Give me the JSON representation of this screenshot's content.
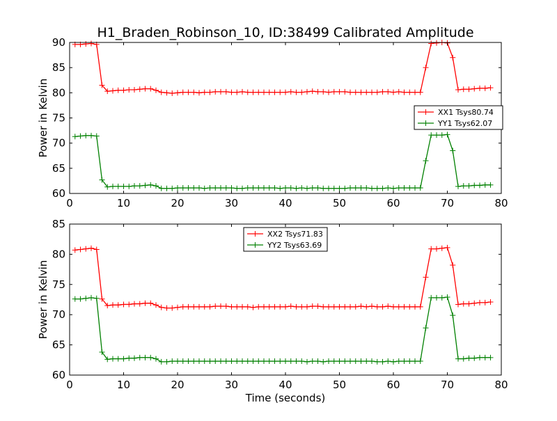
{
  "title": "H1_Braden_Robinson_10, ID:38499 Calibrated Amplitude",
  "xlabel": "Time (seconds)",
  "colors": {
    "XX": "#ff0000",
    "YY": "#008000"
  },
  "chart_data": [
    {
      "type": "line",
      "ylabel": "Power in Kelvin",
      "xlim": [
        0,
        80
      ],
      "ylim": [
        60,
        90
      ],
      "xticks": [
        0,
        10,
        20,
        30,
        40,
        50,
        60,
        70,
        80
      ],
      "yticks": [
        60,
        65,
        70,
        75,
        80,
        85,
        90
      ],
      "legend_position": "center-right",
      "series": [
        {
          "name": "XX1 Tsys80.74",
          "color": "#ff0000",
          "x": [
            1,
            2,
            3,
            4,
            5,
            6,
            7,
            8,
            9,
            10,
            11,
            12,
            13,
            14,
            15,
            16,
            17,
            18,
            19,
            20,
            21,
            22,
            23,
            24,
            25,
            26,
            27,
            28,
            29,
            30,
            31,
            32,
            33,
            34,
            35,
            36,
            37,
            38,
            39,
            40,
            41,
            42,
            43,
            44,
            45,
            46,
            47,
            48,
            49,
            50,
            51,
            52,
            53,
            54,
            55,
            56,
            57,
            58,
            59,
            60,
            61,
            62,
            63,
            64,
            65,
            66,
            67,
            68,
            69,
            70,
            71,
            72,
            73,
            74,
            75,
            76,
            77,
            78
          ],
          "y": [
            89.6,
            89.6,
            89.7,
            89.8,
            89.6,
            81.5,
            80.3,
            80.4,
            80.5,
            80.5,
            80.6,
            80.6,
            80.7,
            80.8,
            80.8,
            80.5,
            80.1,
            80.0,
            79.9,
            80.0,
            80.1,
            80.1,
            80.1,
            80.0,
            80.1,
            80.1,
            80.2,
            80.2,
            80.2,
            80.1,
            80.1,
            80.2,
            80.1,
            80.1,
            80.1,
            80.1,
            80.1,
            80.1,
            80.1,
            80.1,
            80.2,
            80.1,
            80.1,
            80.2,
            80.3,
            80.2,
            80.2,
            80.1,
            80.2,
            80.2,
            80.2,
            80.1,
            80.1,
            80.1,
            80.1,
            80.1,
            80.1,
            80.2,
            80.2,
            80.1,
            80.2,
            80.1,
            80.1,
            80.1,
            80.1,
            85.0,
            89.8,
            89.9,
            90.0,
            89.9,
            87.0,
            80.6,
            80.7,
            80.7,
            80.8,
            80.9,
            80.9,
            81.0
          ]
        },
        {
          "name": "YY1 Tsys62.07",
          "color": "#008000",
          "x": [
            1,
            2,
            3,
            4,
            5,
            6,
            7,
            8,
            9,
            10,
            11,
            12,
            13,
            14,
            15,
            16,
            17,
            18,
            19,
            20,
            21,
            22,
            23,
            24,
            25,
            26,
            27,
            28,
            29,
            30,
            31,
            32,
            33,
            34,
            35,
            36,
            37,
            38,
            39,
            40,
            41,
            42,
            43,
            44,
            45,
            46,
            47,
            48,
            49,
            50,
            51,
            52,
            53,
            54,
            55,
            56,
            57,
            58,
            59,
            60,
            61,
            62,
            63,
            64,
            65,
            66,
            67,
            68,
            69,
            70,
            71,
            72,
            73,
            74,
            75,
            76,
            77,
            78
          ],
          "y": [
            71.3,
            71.4,
            71.5,
            71.5,
            71.4,
            62.7,
            61.3,
            61.4,
            61.4,
            61.4,
            61.4,
            61.5,
            61.5,
            61.6,
            61.7,
            61.5,
            61.0,
            61.0,
            61.0,
            61.1,
            61.1,
            61.1,
            61.1,
            61.1,
            61.0,
            61.1,
            61.1,
            61.1,
            61.1,
            61.1,
            61.0,
            61.0,
            61.1,
            61.1,
            61.1,
            61.1,
            61.1,
            61.1,
            61.0,
            61.1,
            61.1,
            61.0,
            61.1,
            61.0,
            61.1,
            61.1,
            61.0,
            61.0,
            61.0,
            61.0,
            61.0,
            61.1,
            61.1,
            61.1,
            61.1,
            61.0,
            61.0,
            61.0,
            61.1,
            61.0,
            61.1,
            61.1,
            61.1,
            61.1,
            61.1,
            66.5,
            71.6,
            71.6,
            71.6,
            71.7,
            68.5,
            61.4,
            61.5,
            61.5,
            61.6,
            61.6,
            61.7,
            61.7
          ]
        }
      ]
    },
    {
      "type": "line",
      "ylabel": "Power in Kelvin",
      "xlim": [
        0,
        80
      ],
      "ylim": [
        60,
        85
      ],
      "xticks": [
        0,
        10,
        20,
        30,
        40,
        50,
        60,
        70,
        80
      ],
      "yticks": [
        60,
        65,
        70,
        75,
        80,
        85
      ],
      "legend_position": "upper-center",
      "series": [
        {
          "name": "XX2 Tsys71.83",
          "color": "#ff0000",
          "x": [
            1,
            2,
            3,
            4,
            5,
            6,
            7,
            8,
            9,
            10,
            11,
            12,
            13,
            14,
            15,
            16,
            17,
            18,
            19,
            20,
            21,
            22,
            23,
            24,
            25,
            26,
            27,
            28,
            29,
            30,
            31,
            32,
            33,
            34,
            35,
            36,
            37,
            38,
            39,
            40,
            41,
            42,
            43,
            44,
            45,
            46,
            47,
            48,
            49,
            50,
            51,
            52,
            53,
            54,
            55,
            56,
            57,
            58,
            59,
            60,
            61,
            62,
            63,
            64,
            65,
            66,
            67,
            68,
            69,
            70,
            71,
            72,
            73,
            74,
            75,
            76,
            77,
            78
          ],
          "y": [
            80.7,
            80.8,
            80.9,
            81.0,
            80.8,
            72.6,
            71.5,
            71.6,
            71.6,
            71.7,
            71.7,
            71.8,
            71.8,
            71.9,
            71.9,
            71.6,
            71.2,
            71.1,
            71.1,
            71.2,
            71.3,
            71.3,
            71.3,
            71.3,
            71.3,
            71.3,
            71.4,
            71.4,
            71.4,
            71.3,
            71.3,
            71.3,
            71.3,
            71.2,
            71.3,
            71.3,
            71.3,
            71.3,
            71.3,
            71.3,
            71.4,
            71.3,
            71.3,
            71.3,
            71.4,
            71.4,
            71.3,
            71.3,
            71.3,
            71.3,
            71.3,
            71.3,
            71.3,
            71.4,
            71.3,
            71.4,
            71.3,
            71.3,
            71.4,
            71.3,
            71.3,
            71.3,
            71.3,
            71.3,
            71.3,
            76.2,
            80.9,
            80.9,
            81.0,
            81.1,
            78.2,
            71.7,
            71.8,
            71.8,
            71.9,
            72.0,
            72.0,
            72.1
          ]
        },
        {
          "name": "YY2 Tsys63.69",
          "color": "#008000",
          "x": [
            1,
            2,
            3,
            4,
            5,
            6,
            7,
            8,
            9,
            10,
            11,
            12,
            13,
            14,
            15,
            16,
            17,
            18,
            19,
            20,
            21,
            22,
            23,
            24,
            25,
            26,
            27,
            28,
            29,
            30,
            31,
            32,
            33,
            34,
            35,
            36,
            37,
            38,
            39,
            40,
            41,
            42,
            43,
            44,
            45,
            46,
            47,
            48,
            49,
            50,
            51,
            52,
            53,
            54,
            55,
            56,
            57,
            58,
            59,
            60,
            61,
            62,
            63,
            64,
            65,
            66,
            67,
            68,
            69,
            70,
            71,
            72,
            73,
            74,
            75,
            76,
            77,
            78
          ],
          "y": [
            72.6,
            72.6,
            72.7,
            72.8,
            72.7,
            63.8,
            62.6,
            62.7,
            62.7,
            62.7,
            62.8,
            62.8,
            62.9,
            62.9,
            62.9,
            62.7,
            62.2,
            62.2,
            62.3,
            62.3,
            62.3,
            62.3,
            62.3,
            62.3,
            62.3,
            62.3,
            62.3,
            62.3,
            62.3,
            62.3,
            62.3,
            62.3,
            62.3,
            62.3,
            62.3,
            62.3,
            62.3,
            62.3,
            62.3,
            62.3,
            62.3,
            62.3,
            62.3,
            62.2,
            62.3,
            62.3,
            62.2,
            62.3,
            62.3,
            62.3,
            62.3,
            62.3,
            62.3,
            62.3,
            62.3,
            62.3,
            62.2,
            62.2,
            62.3,
            62.2,
            62.3,
            62.3,
            62.3,
            62.3,
            62.3,
            67.8,
            72.8,
            72.8,
            72.8,
            72.9,
            69.9,
            62.7,
            62.7,
            62.8,
            62.8,
            62.9,
            62.9,
            62.9
          ]
        }
      ]
    }
  ]
}
